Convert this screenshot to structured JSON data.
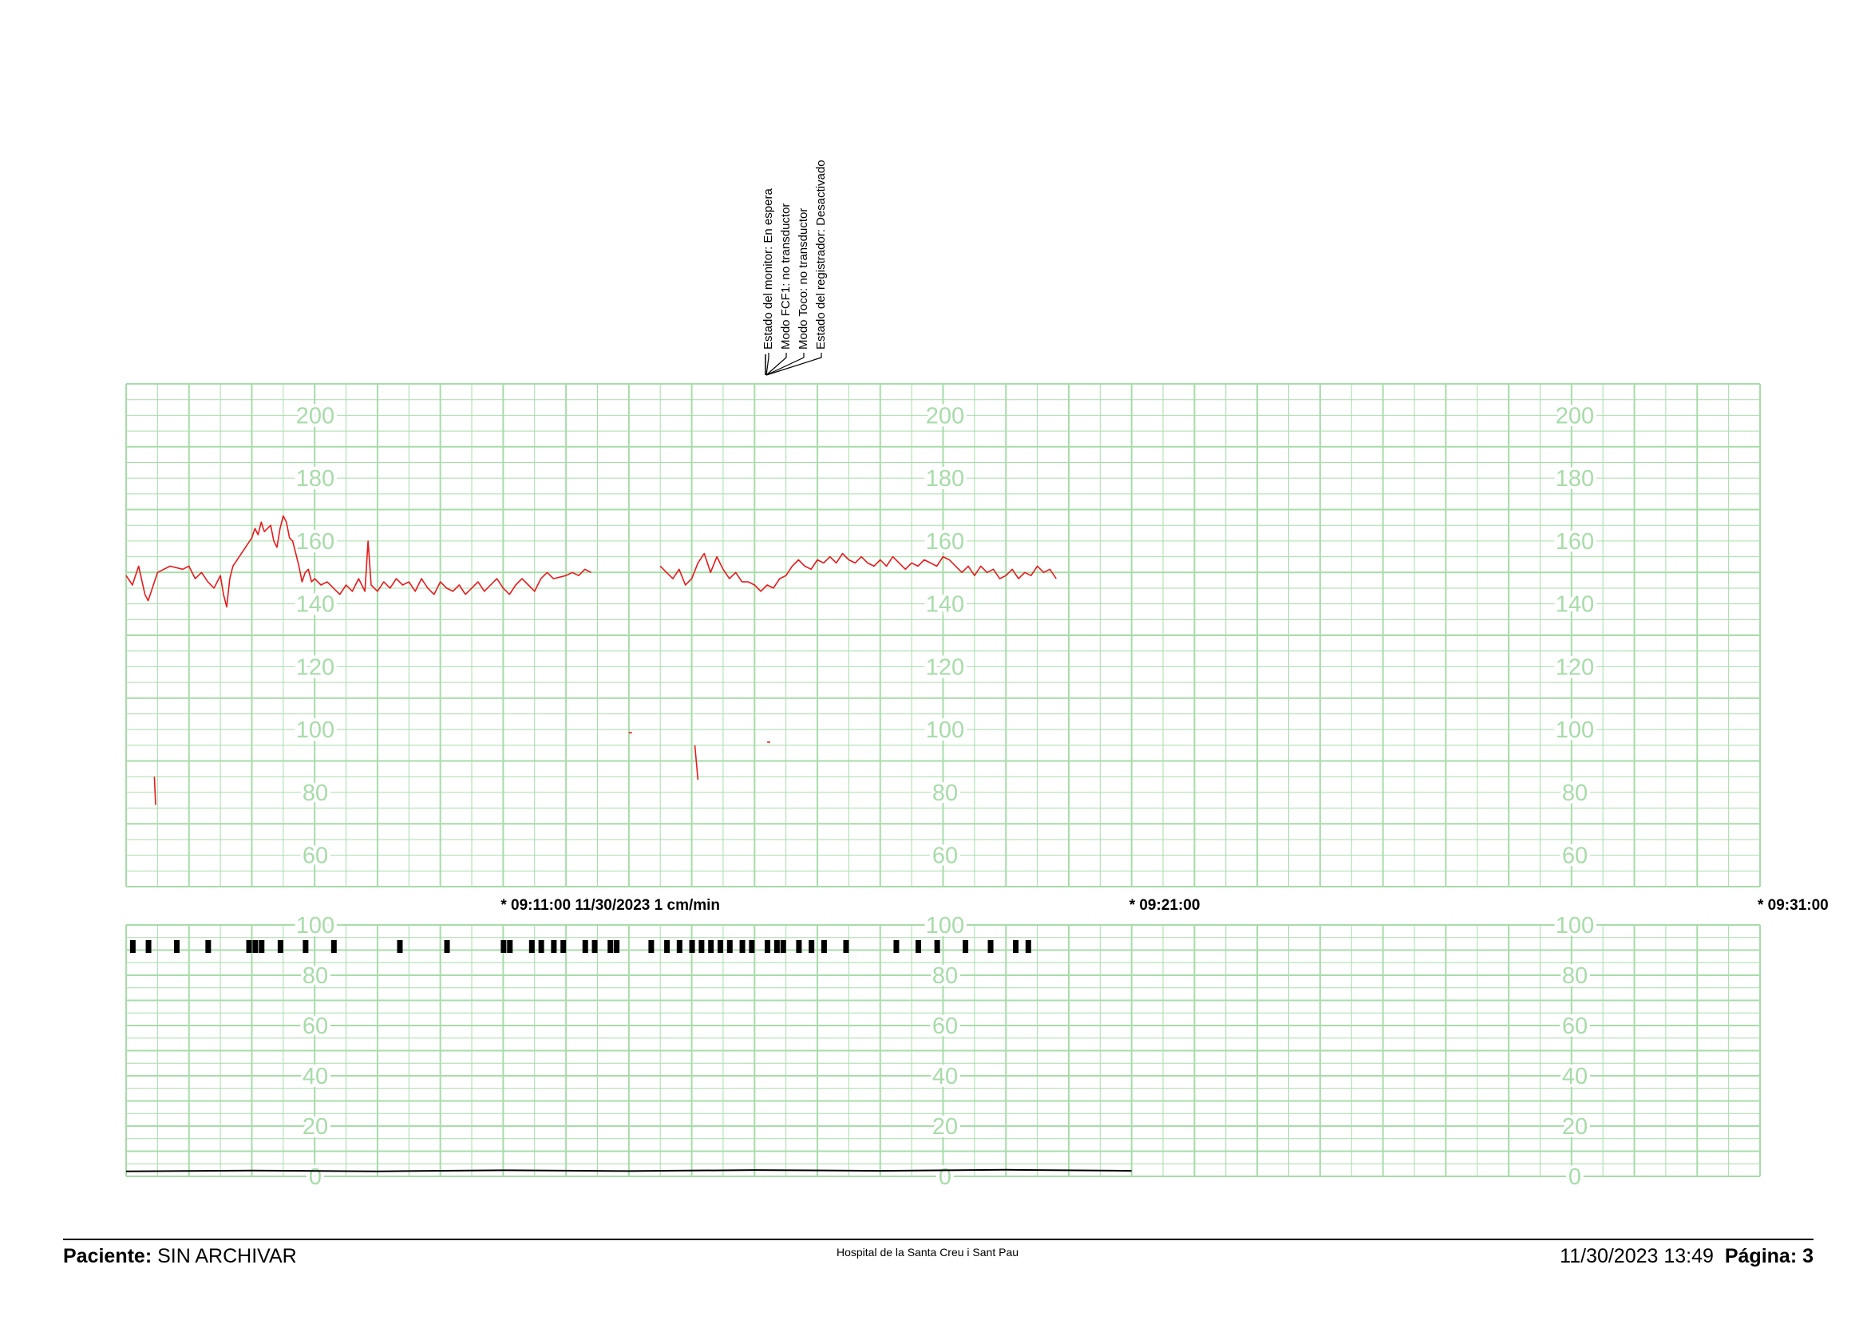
{
  "status_annotations": [
    "Estado del monitor: En espera",
    "Modo FCF1: no transductor",
    "Modo Toco: no transductor",
    "Estado del registrador: Desactivado"
  ],
  "time_markers": [
    {
      "label": "* 09:11:00  11/30/2023  1 cm/min",
      "minute": 6
    },
    {
      "label": "* 09:21:00",
      "minute": 16
    },
    {
      "label": "* 09:31:00",
      "minute": 26
    }
  ],
  "footer": {
    "patient_label": "Paciente:",
    "patient_value": "SIN ARCHIVAR",
    "hospital": "Hospital de la Santa Creu i Sant Pau",
    "datetime": "11/30/2023 13:49",
    "page_label": "Página: 3"
  },
  "colors": {
    "grid": "#a7dca9",
    "grid_label": "#a7dca9",
    "fhr_trace": "#e8191c",
    "toco_trace": "#000000",
    "event_marks": "#000000"
  },
  "chart_data": [
    {
      "type": "line",
      "name": "fhr",
      "xlabel": "",
      "ylabel": "",
      "xlim": [
        0,
        26
      ],
      "ylim": [
        50,
        210
      ],
      "yticks": [
        60,
        80,
        100,
        120,
        140,
        160,
        180,
        200
      ],
      "grid": true,
      "series": [
        {
          "values": [
            [
              0.0,
              149
            ],
            [
              0.1,
              146
            ],
            [
              0.2,
              152
            ],
            [
              0.3,
              143
            ],
            [
              0.35,
              141
            ],
            [
              0.5,
              150
            ],
            [
              0.7,
              152
            ],
            [
              0.9,
              151
            ],
            [
              1.0,
              152
            ],
            [
              1.1,
              148
            ],
            [
              1.2,
              150
            ],
            [
              1.3,
              147
            ],
            [
              1.4,
              145
            ],
            [
              1.5,
              149
            ],
            [
              1.55,
              143
            ],
            [
              1.6,
              139
            ],
            [
              1.65,
              148
            ],
            [
              1.7,
              152
            ],
            [
              1.8,
              155
            ],
            [
              1.9,
              158
            ],
            [
              2.0,
              161
            ],
            [
              2.05,
              164
            ],
            [
              2.1,
              162
            ],
            [
              2.15,
              166
            ],
            [
              2.2,
              163
            ],
            [
              2.3,
              165
            ],
            [
              2.35,
              160
            ],
            [
              2.4,
              158
            ],
            [
              2.45,
              164
            ],
            [
              2.5,
              168
            ],
            [
              2.55,
              166
            ],
            [
              2.6,
              161
            ],
            [
              2.65,
              160
            ],
            [
              2.7,
              156
            ],
            [
              2.75,
              152
            ],
            [
              2.8,
              147
            ],
            [
              2.85,
              150
            ],
            [
              2.9,
              151
            ],
            [
              2.95,
              147
            ],
            [
              3.0,
              148
            ],
            [
              3.1,
              146
            ],
            [
              3.2,
              147
            ],
            [
              3.3,
              145
            ],
            [
              3.4,
              143
            ],
            [
              3.5,
              146
            ],
            [
              3.6,
              144
            ],
            [
              3.7,
              148
            ],
            [
              3.8,
              144
            ],
            [
              3.85,
              160
            ],
            [
              3.9,
              146
            ],
            [
              4.0,
              144
            ],
            [
              4.1,
              147
            ],
            [
              4.2,
              145
            ],
            [
              4.3,
              148
            ],
            [
              4.4,
              146
            ],
            [
              4.5,
              147
            ],
            [
              4.6,
              144
            ],
            [
              4.7,
              148
            ],
            [
              4.8,
              145
            ],
            [
              4.9,
              143
            ],
            [
              5.0,
              147
            ],
            [
              5.1,
              145
            ],
            [
              5.2,
              144
            ],
            [
              5.3,
              146
            ],
            [
              5.4,
              143
            ],
            [
              5.5,
              145
            ],
            [
              5.6,
              147
            ],
            [
              5.7,
              144
            ],
            [
              5.8,
              146
            ],
            [
              5.9,
              148
            ],
            [
              6.0,
              145
            ],
            [
              6.1,
              143
            ],
            [
              6.2,
              146
            ],
            [
              6.3,
              148
            ],
            [
              6.4,
              146
            ],
            [
              6.5,
              144
            ],
            [
              6.6,
              148
            ],
            [
              6.7,
              150
            ],
            [
              6.8,
              148
            ],
            [
              7.0,
              149
            ],
            [
              7.1,
              150
            ],
            [
              7.2,
              149
            ],
            [
              7.3,
              151
            ],
            [
              7.4,
              150
            ]
          ]
        },
        {
          "values": [
            [
              8.5,
              152
            ],
            [
              8.6,
              150
            ],
            [
              8.7,
              148
            ],
            [
              8.8,
              151
            ],
            [
              8.9,
              146
            ],
            [
              9.0,
              148
            ],
            [
              9.1,
              153
            ],
            [
              9.2,
              156
            ],
            [
              9.3,
              150
            ],
            [
              9.4,
              155
            ],
            [
              9.5,
              151
            ],
            [
              9.6,
              148
            ],
            [
              9.7,
              150
            ],
            [
              9.8,
              147
            ],
            [
              9.9,
              147
            ],
            [
              10.0,
              146
            ],
            [
              10.1,
              144
            ],
            [
              10.2,
              146
            ],
            [
              10.3,
              145
            ],
            [
              10.4,
              148
            ],
            [
              10.5,
              149
            ],
            [
              10.6,
              152
            ],
            [
              10.7,
              154
            ],
            [
              10.8,
              152
            ],
            [
              10.9,
              151
            ],
            [
              11.0,
              154
            ],
            [
              11.1,
              153
            ],
            [
              11.2,
              155
            ],
            [
              11.3,
              153
            ],
            [
              11.4,
              156
            ],
            [
              11.5,
              154
            ],
            [
              11.6,
              153
            ],
            [
              11.7,
              155
            ],
            [
              11.8,
              153
            ],
            [
              11.9,
              152
            ],
            [
              12.0,
              154
            ],
            [
              12.1,
              152
            ],
            [
              12.2,
              155
            ],
            [
              12.3,
              153
            ],
            [
              12.4,
              151
            ],
            [
              12.5,
              153
            ],
            [
              12.6,
              152
            ],
            [
              12.7,
              154
            ],
            [
              12.8,
              153
            ],
            [
              12.9,
              152
            ],
            [
              13.0,
              155
            ],
            [
              13.1,
              154
            ],
            [
              13.2,
              152
            ],
            [
              13.3,
              150
            ],
            [
              13.4,
              152
            ],
            [
              13.5,
              149
            ],
            [
              13.6,
              152
            ],
            [
              13.7,
              150
            ],
            [
              13.8,
              151
            ],
            [
              13.9,
              148
            ],
            [
              14.0,
              149
            ],
            [
              14.1,
              151
            ],
            [
              14.2,
              148
            ],
            [
              14.3,
              150
            ],
            [
              14.4,
              149
            ],
            [
              14.5,
              152
            ],
            [
              14.6,
              150
            ],
            [
              14.7,
              151
            ],
            [
              14.8,
              148
            ]
          ]
        },
        {
          "values": [
            [
              0.45,
              85
            ],
            [
              0.47,
              76
            ]
          ]
        },
        {
          "values": [
            [
              9.05,
              95
            ],
            [
              9.1,
              84
            ]
          ]
        },
        {
          "values": [
            [
              8.0,
              99
            ],
            [
              8.05,
              99
            ]
          ]
        },
        {
          "values": [
            [
              10.2,
              96
            ],
            [
              10.25,
              96
            ]
          ]
        }
      ]
    },
    {
      "type": "line",
      "name": "toco",
      "xlabel": "",
      "ylabel": "",
      "xlim": [
        0,
        26
      ],
      "ylim": [
        0,
        100
      ],
      "yticks": [
        0,
        20,
        40,
        60,
        80,
        100
      ],
      "grid": true,
      "series": [
        {
          "values": [
            [
              0,
              2
            ],
            [
              2,
              2.3
            ],
            [
              4,
              2
            ],
            [
              6,
              2.4
            ],
            [
              8,
              2.1
            ],
            [
              10,
              2.5
            ],
            [
              12,
              2.2
            ],
            [
              14,
              2.6
            ],
            [
              16,
              2.2
            ]
          ]
        }
      ],
      "event_marks": [
        0.1,
        0.35,
        0.8,
        1.3,
        1.95,
        2.05,
        2.15,
        2.45,
        2.85,
        3.3,
        4.35,
        5.1,
        6.0,
        6.1,
        6.45,
        6.6,
        6.8,
        6.95,
        7.3,
        7.45,
        7.7,
        7.8,
        8.35,
        8.6,
        8.8,
        9.0,
        9.15,
        9.3,
        9.45,
        9.6,
        9.8,
        9.95,
        10.2,
        10.35,
        10.45,
        10.7,
        10.9,
        11.1,
        11.45,
        12.25,
        12.6,
        12.9,
        13.35,
        13.75,
        14.15,
        14.35
      ]
    }
  ]
}
